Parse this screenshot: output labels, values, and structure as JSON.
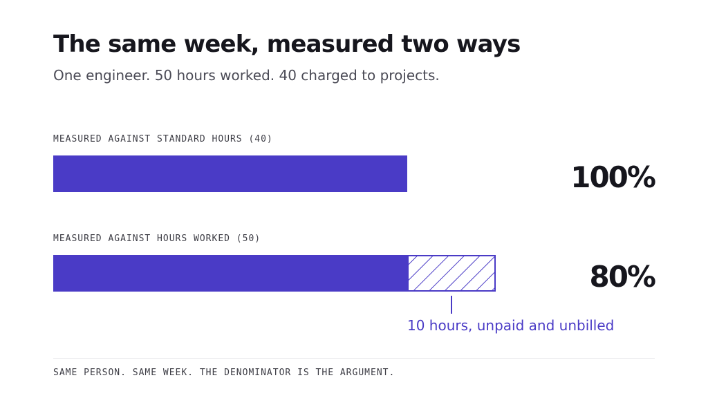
{
  "header": {
    "title": "The same week, measured two ways",
    "subtitle": "One engineer. 50 hours worked. 40 charged to projects."
  },
  "chart_data": {
    "type": "bar",
    "unit": "hours",
    "bars": [
      {
        "label": "MEASURED AGAINST STANDARD HOURS (40)",
        "denominator": 40,
        "charged": 40,
        "unbilled": 0,
        "percent_label": "100%"
      },
      {
        "label": "MEASURED AGAINST HOURS WORKED (50)",
        "denominator": 50,
        "charged": 40,
        "unbilled": 10,
        "percent_label": "80%"
      }
    ],
    "annotation": "10 hours, unpaid and unbilled",
    "colors": {
      "charged": "#4a3bc6",
      "unbilled_hatch": "#4a3bc6",
      "annotation": "#4a3bc6"
    }
  },
  "footer": {
    "text": "SAME PERSON. SAME WEEK. THE DENOMINATOR IS THE ARGUMENT."
  }
}
